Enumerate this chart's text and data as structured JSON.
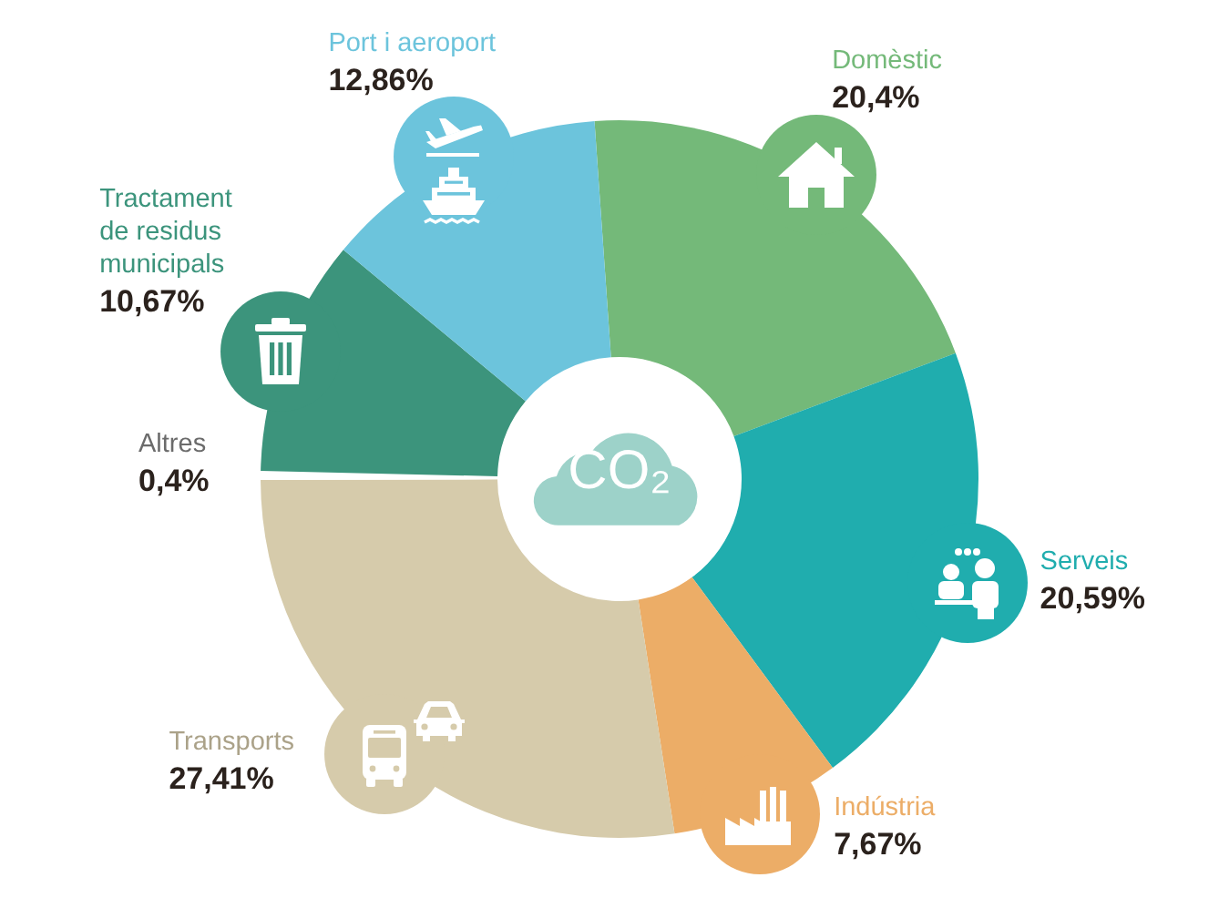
{
  "chart_data": {
    "type": "donut",
    "categories": [
      "Domèstic",
      "Serveis",
      "Indústria",
      "Transports",
      "Altres",
      "Tractament de residus municipals",
      "Port i aeroport"
    ],
    "values": [
      20.4,
      20.59,
      7.67,
      27.41,
      0.4,
      10.67,
      12.86
    ],
    "colors": [
      "#74b979",
      "#20adae",
      "#ecad67",
      "#d6cbab",
      "#ffffff",
      "#3c947c",
      "#6cc4dc"
    ],
    "value_labels": [
      "20,4%",
      "20,59%",
      "7,67%",
      "27,41%",
      "0,4%",
      "10,67%",
      "12,86%"
    ],
    "annotations": [
      "CO₂"
    ]
  }
}
